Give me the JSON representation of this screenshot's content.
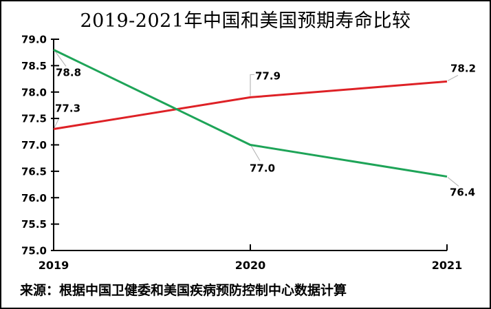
{
  "chart_data": {
    "type": "line",
    "title": "2019-2021年中国和美国预期寿命比较",
    "source_note": "来源：根据中国卫健委和美国疾病预防控制中心数据计算",
    "categories": [
      "2019",
      "2020",
      "2021"
    ],
    "series": [
      {
        "id": "red-line",
        "color": "#de2126",
        "values": [
          77.3,
          77.9,
          78.2
        ],
        "point_labels": [
          "77.3",
          "77.9",
          "78.2"
        ]
      },
      {
        "id": "green-line",
        "color": "#1ea458",
        "values": [
          78.8,
          77.0,
          76.4
        ],
        "point_labels": [
          "78.8",
          "77.0",
          "76.4"
        ]
      }
    ],
    "ylim": [
      75.0,
      79.0
    ],
    "ytick_step": 0.5,
    "ytick_labels": [
      "79.0",
      "78.5",
      "78.0",
      "77.5",
      "77.0",
      "76.5",
      "76.0",
      "75.5",
      "75.0"
    ],
    "xlabel": "",
    "ylabel": "",
    "grid": false,
    "legend": "none",
    "axis_color": "#000000",
    "leader_line_color": "#b8b8b8",
    "layout": {
      "label_offsets": [
        [
          [
            2,
            -38
          ],
          [
            7,
            -39
          ],
          [
            5,
            -27
          ]
        ],
        [
          [
            3,
            25
          ],
          [
            -1,
            26
          ],
          [
            4,
            15
          ]
        ]
      ],
      "leaders": [
        [
          [
            [
              1,
              -2
            ],
            [
              8,
              -16
            ]
          ],
          [
            [
              0,
              -2
            ],
            [
              0,
              -33
            ],
            [
              6,
              -33
            ]
          ],
          [
            [
              1,
              -1
            ],
            [
              16,
              -9
            ]
          ]
        ],
        [
          [
            [
              2,
              2
            ],
            [
              18,
              24
            ]
          ],
          [
            [
              1,
              1
            ],
            [
              14,
              23
            ]
          ],
          [
            [
              1,
              1
            ],
            [
              17,
              14
            ]
          ]
        ]
      ]
    }
  }
}
